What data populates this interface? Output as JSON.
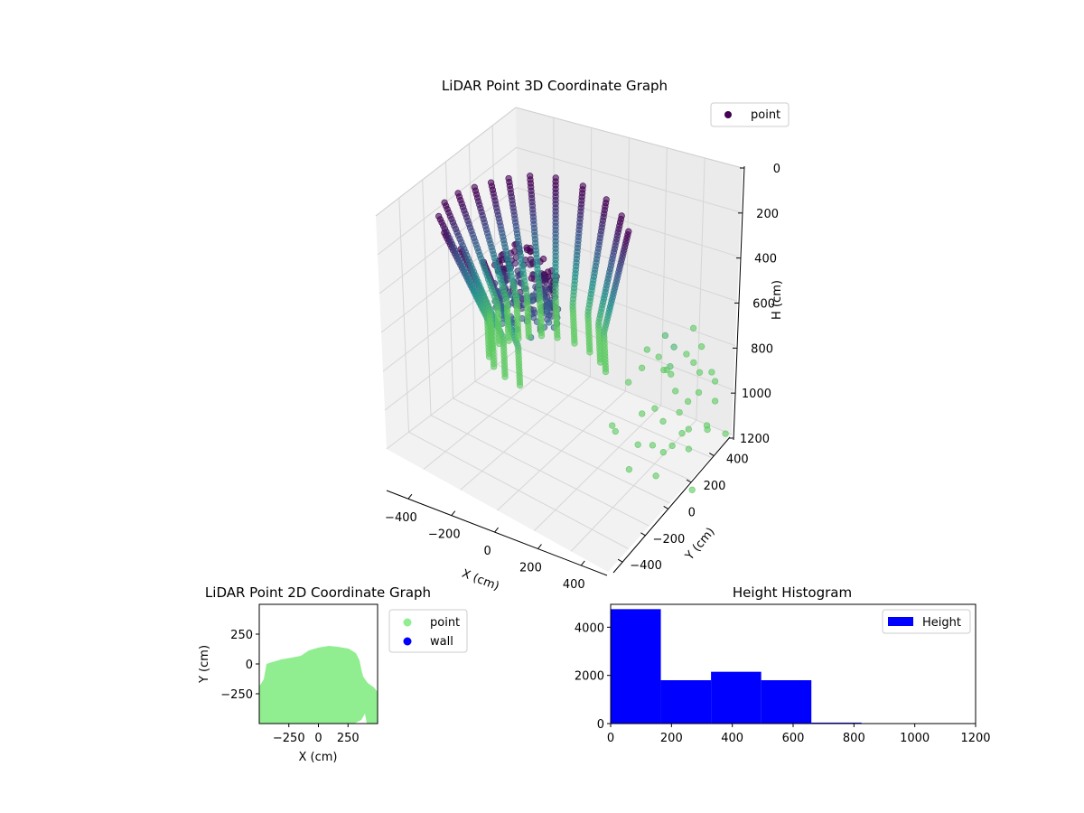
{
  "colors": {
    "viridis_dark": "#440154",
    "viridis_mid": "#3b528b",
    "viridis_teal": "#21918c",
    "viridis_green": "#5ec962",
    "light_green": "#90ee90",
    "blue": "#0000ff",
    "pane": "#f2f2f2"
  },
  "chart_data": [
    {
      "type": "scatter",
      "projection": "3d",
      "title": "LiDAR Point 3D Coordinate Graph",
      "xlabel": "X (cm)",
      "ylabel": "Y (cm)",
      "zlabel": "H (cm)",
      "x_ticks": [
        "−400",
        "−200",
        "0",
        "200",
        "400"
      ],
      "y_ticks": [
        "−400",
        "−200",
        "0",
        "200",
        "400"
      ],
      "z_ticks": [
        "0",
        "200",
        "400",
        "600",
        "800",
        "1000",
        "1200"
      ],
      "xlim": [
        -450,
        450
      ],
      "ylim": [
        -450,
        450
      ],
      "zlim": [
        0,
        1200
      ],
      "z_inverted": true,
      "colormap": "viridis",
      "legend": {
        "placement": "top-right",
        "entries": [
          "point"
        ]
      },
      "series": [
        {
          "name": "point",
          "description_values": "dense curved scan columns around the sensor"
        }
      ]
    },
    {
      "type": "scatter",
      "title": "LiDAR Point 2D Coordinate Graph",
      "xlabel": "X (cm)",
      "ylabel": "Y (cm)",
      "x_ticks": [
        "−250",
        "0",
        "250"
      ],
      "y_ticks": [
        "250",
        "0",
        "−250"
      ],
      "xlim": [
        -500,
        500
      ],
      "ylim": [
        -500,
        500
      ],
      "legend": {
        "placement": "outside-right",
        "entries": [
          "point",
          "wall"
        ]
      },
      "series": [
        {
          "name": "point",
          "color": "#90ee90"
        },
        {
          "name": "wall",
          "color": "#0000ff"
        }
      ]
    },
    {
      "type": "bar",
      "title": "Height Histogram",
      "xlabel": "",
      "ylabel": "",
      "bins": [
        {
          "x0": 0,
          "x1": 165,
          "value": 4750
        },
        {
          "x0": 165,
          "x1": 330,
          "value": 1800
        },
        {
          "x0": 330,
          "x1": 495,
          "value": 2150
        },
        {
          "x0": 495,
          "x1": 660,
          "value": 1800
        },
        {
          "x0": 660,
          "x1": 825,
          "value": 40
        },
        {
          "x0": 825,
          "x1": 990,
          "value": 8
        },
        {
          "x0": 990,
          "x1": 1155,
          "value": 5
        }
      ],
      "x_ticks": [
        "0",
        "200",
        "400",
        "600",
        "800",
        "1000",
        "1200"
      ],
      "y_ticks": [
        "0",
        "2000",
        "4000"
      ],
      "xlim": [
        0,
        1200
      ],
      "ylim": [
        0,
        4950
      ],
      "legend": {
        "placement": "top-right",
        "entries": [
          "Height"
        ]
      },
      "series": [
        {
          "name": "Height",
          "color": "#0000ff"
        }
      ]
    }
  ]
}
